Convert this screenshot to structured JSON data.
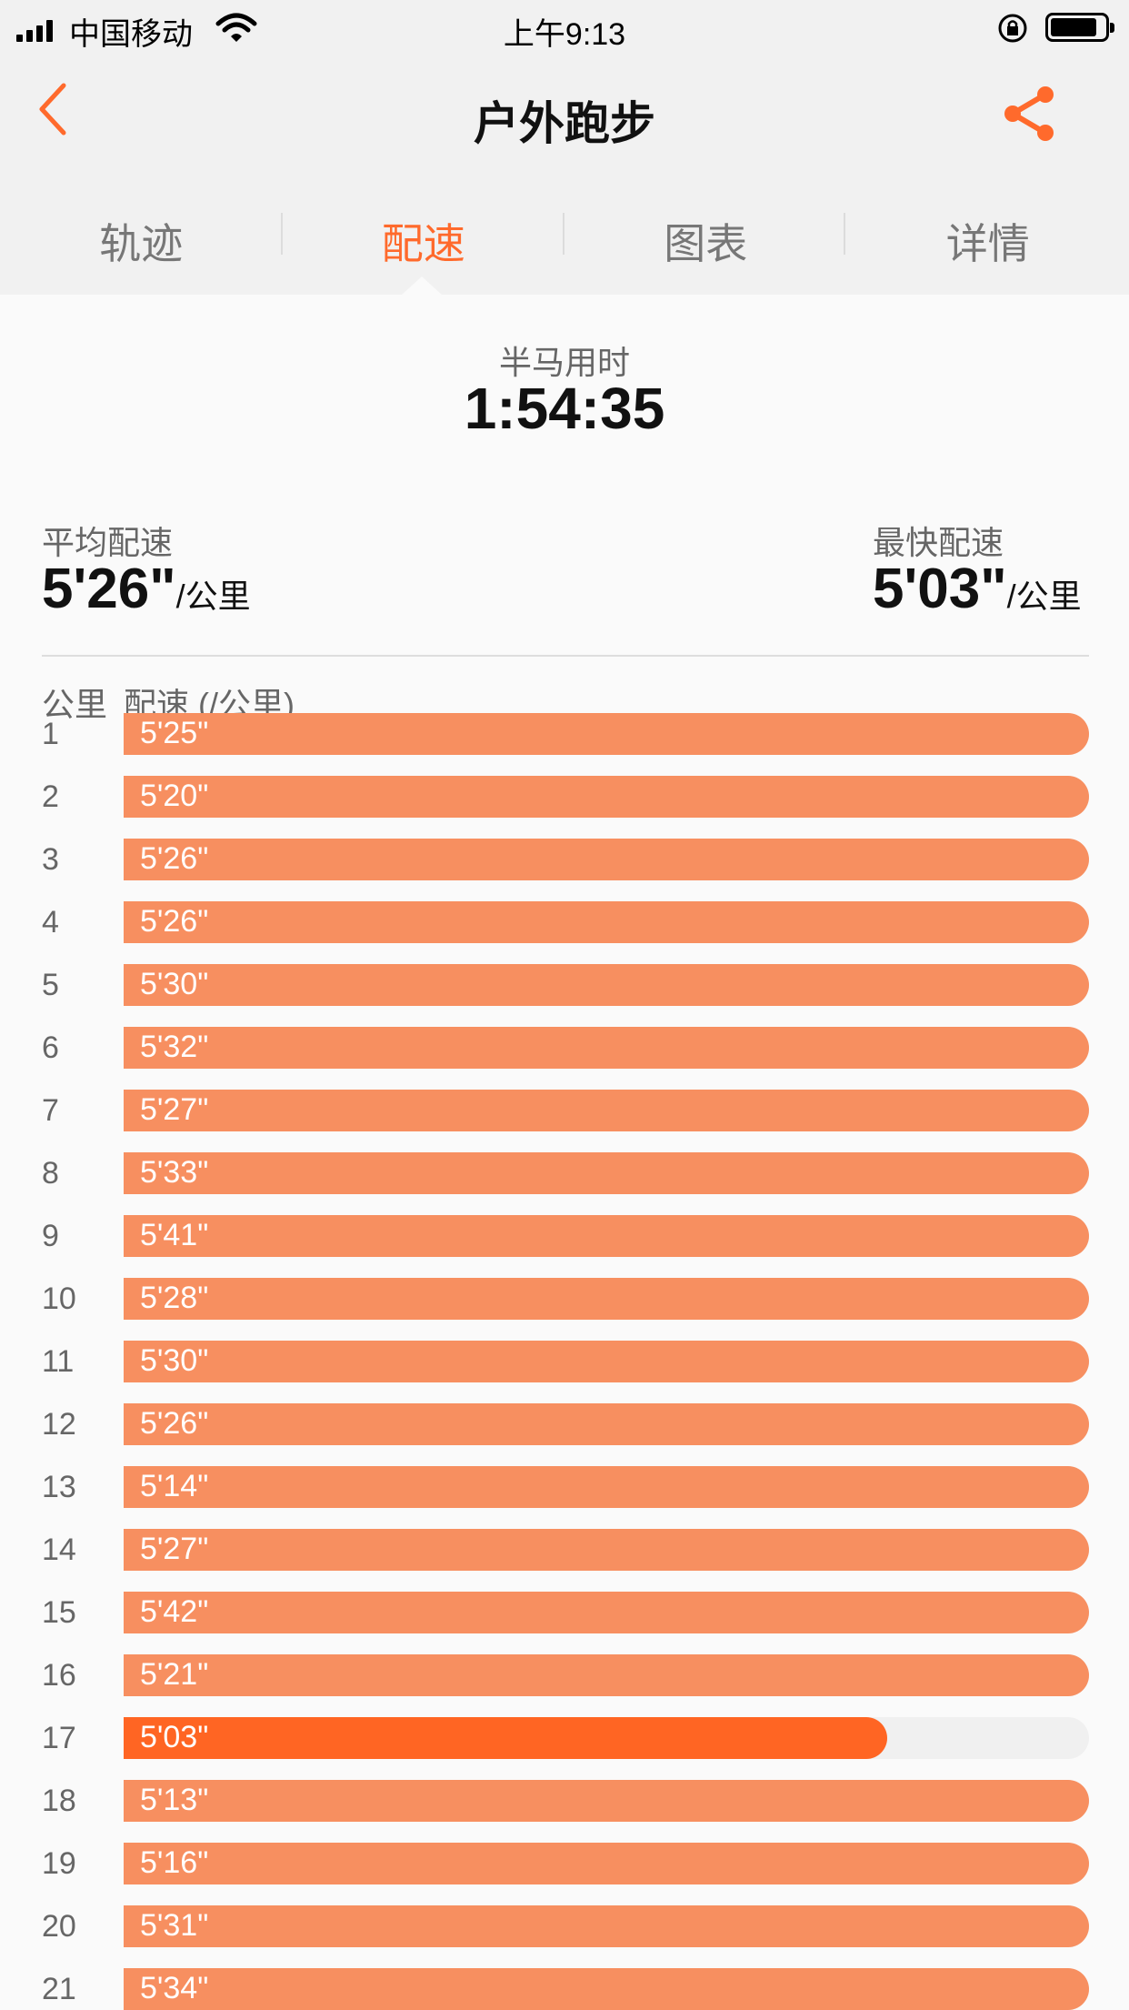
{
  "status_bar": {
    "carrier": "中国移动",
    "time": "上午9:13"
  },
  "nav": {
    "title": "户外跑步"
  },
  "tabs": [
    {
      "label": "轨迹",
      "active": false
    },
    {
      "label": "配速",
      "active": true
    },
    {
      "label": "图表",
      "active": false
    },
    {
      "label": "详情",
      "active": false
    }
  ],
  "summary": {
    "half_marathon_label": "半马用时",
    "half_marathon_time": "1:54:35",
    "avg_pace_label": "平均配速",
    "avg_pace_value": "5'26\"",
    "fastest_pace_label": "最快配速",
    "fastest_pace_value": "5'03\"",
    "unit": "/公里"
  },
  "table": {
    "col_km": "公里",
    "col_pace": "配速 (/公里)",
    "rows": [
      {
        "km": "1",
        "pace": "5'25\"",
        "seconds": 325
      },
      {
        "km": "2",
        "pace": "5'20\"",
        "seconds": 320
      },
      {
        "km": "3",
        "pace": "5'26\"",
        "seconds": 326
      },
      {
        "km": "4",
        "pace": "5'26\"",
        "seconds": 326
      },
      {
        "km": "5",
        "pace": "5'30\"",
        "seconds": 330
      },
      {
        "km": "6",
        "pace": "5'32\"",
        "seconds": 332
      },
      {
        "km": "7",
        "pace": "5'27\"",
        "seconds": 327
      },
      {
        "km": "8",
        "pace": "5'33\"",
        "seconds": 333
      },
      {
        "km": "9",
        "pace": "5'41\"",
        "seconds": 341
      },
      {
        "km": "10",
        "pace": "5'28\"",
        "seconds": 328
      },
      {
        "km": "11",
        "pace": "5'30\"",
        "seconds": 330
      },
      {
        "km": "12",
        "pace": "5'26\"",
        "seconds": 326
      },
      {
        "km": "13",
        "pace": "5'14\"",
        "seconds": 314
      },
      {
        "km": "14",
        "pace": "5'27\"",
        "seconds": 327
      },
      {
        "km": "15",
        "pace": "5'42\"",
        "seconds": 342
      },
      {
        "km": "16",
        "pace": "5'21\"",
        "seconds": 321
      },
      {
        "km": "17",
        "pace": "5'03\"",
        "seconds": 303,
        "fastest": true
      },
      {
        "km": "18",
        "pace": "5'13\"",
        "seconds": 313
      },
      {
        "km": "19",
        "pace": "5'16\"",
        "seconds": 316
      },
      {
        "km": "20",
        "pace": "5'31\"",
        "seconds": 331
      },
      {
        "km": "21",
        "pace": "5'34\"",
        "seconds": 334
      }
    ]
  },
  "colors": {
    "accent": "#ff6a2c",
    "bar": "#f78f60",
    "bar_fastest": "#ff6523",
    "track": "#f0f0f0"
  },
  "icons": {
    "back": "chevron-left-icon",
    "share": "share-icon"
  }
}
